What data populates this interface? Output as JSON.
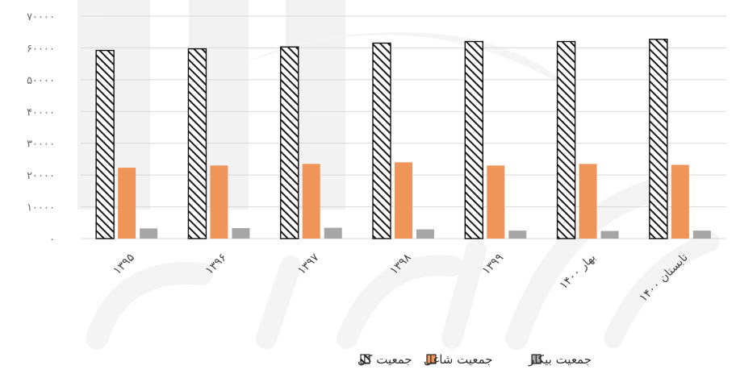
{
  "chart_data": {
    "type": "bar",
    "categories": [
      "۱۳۹۵",
      "۱۳۹۶",
      "۱۳۹۷",
      "۱۳۹۸",
      "۱۳۹۹",
      "بهار ۱۴۰۰",
      "تابستان ۱۴۰۰"
    ],
    "series": [
      {
        "name": "جمعیت کل",
        "values": [
          59200,
          59700,
          60300,
          61500,
          62000,
          62000,
          62700
        ]
      },
      {
        "name": "جمعیت شاغل",
        "values": [
          22300,
          23000,
          23500,
          24000,
          23000,
          23500,
          23200
        ]
      },
      {
        "name": "جمعیت بیکار",
        "values": [
          3200,
          3300,
          3400,
          2900,
          2500,
          2400,
          2500
        ]
      }
    ],
    "ylim": [
      0,
      70000
    ],
    "yticks": [
      0,
      10000,
      20000,
      30000,
      40000,
      50000,
      60000,
      70000
    ],
    "ytick_labels": [
      "۰",
      "۱۰۰۰۰",
      "۲۰۰۰۰",
      "۳۰۰۰۰",
      "۴۰۰۰۰",
      "۵۰۰۰۰",
      "۶۰۰۰۰",
      "۷۰۰۰۰"
    ],
    "grid": true,
    "legend_position": "bottom",
    "title": "",
    "xlabel": "",
    "ylabel": ""
  },
  "colors": {
    "total_fill": "#ffffff",
    "total_hatch": "#1a1a1a",
    "employed": "#f0955a",
    "unemployed": "#a6a6a6",
    "grid": "#d9d9d9",
    "watermark": "#e6e6e6"
  }
}
